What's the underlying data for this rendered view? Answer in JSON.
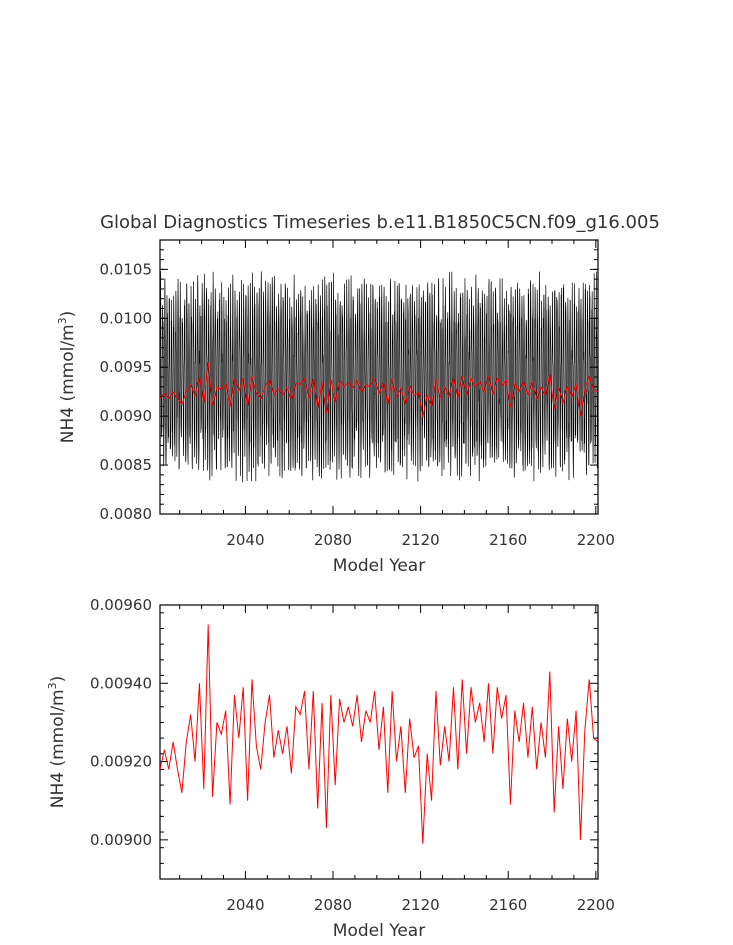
{
  "title": "Global Diagnostics Timeseries b.e11.B1850C5CN.f09_g16.005",
  "chart_data": [
    {
      "type": "line",
      "xlabel": "Model Year",
      "ylabel_base": "NH4 (mmol/m",
      "ylabel_sup": "3",
      "ylabel_close": ")",
      "xlim": [
        2001,
        2201
      ],
      "ylim": [
        0.008,
        0.0108
      ],
      "xticks": [
        2040,
        2080,
        2120,
        2160,
        2200
      ],
      "yticks": [
        "0.0080",
        "0.0085",
        "0.0090",
        "0.0095",
        "0.0100",
        "0.0105"
      ],
      "series": [
        {
          "color": "#000000",
          "description_of_signal": "monthly values, seasonal oscillation",
          "annual_min_approx": 0.0086,
          "annual_max_approx": 0.0102
        },
        {
          "color": "#ff0000",
          "x": [
            2001,
            2003,
            2005,
            2007,
            2009,
            2011,
            2013,
            2015,
            2017,
            2019,
            2021,
            2023,
            2025,
            2027,
            2029,
            2031,
            2033,
            2035,
            2037,
            2039,
            2041,
            2043,
            2045,
            2047,
            2049,
            2051,
            2053,
            2055,
            2057,
            2059,
            2061,
            2063,
            2065,
            2067,
            2069,
            2071,
            2073,
            2075,
            2077,
            2079,
            2081,
            2083,
            2085,
            2087,
            2089,
            2091,
            2093,
            2095,
            2097,
            2099,
            2101,
            2103,
            2105,
            2107,
            2109,
            2111,
            2113,
            2115,
            2117,
            2119,
            2121,
            2123,
            2125,
            2127,
            2129,
            2131,
            2133,
            2135,
            2137,
            2139,
            2141,
            2143,
            2145,
            2147,
            2149,
            2151,
            2153,
            2155,
            2157,
            2159,
            2161,
            2163,
            2165,
            2167,
            2169,
            2171,
            2173,
            2175,
            2177,
            2179,
            2181,
            2183,
            2185,
            2187,
            2189,
            2191,
            2193,
            2195,
            2197,
            2199,
            2201
          ],
          "values": [
            0.00918,
            0.00923,
            0.00918,
            0.00925,
            0.00918,
            0.00912,
            0.00925,
            0.00932,
            0.0092,
            0.0094,
            0.00913,
            0.00955,
            0.00911,
            0.0093,
            0.00927,
            0.00933,
            0.00909,
            0.00937,
            0.00926,
            0.00939,
            0.0091,
            0.00941,
            0.00924,
            0.00918,
            0.0093,
            0.00937,
            0.00921,
            0.00928,
            0.00922,
            0.00929,
            0.00917,
            0.00934,
            0.00932,
            0.00938,
            0.00918,
            0.00938,
            0.00908,
            0.00935,
            0.00903,
            0.00937,
            0.00914,
            0.00936,
            0.0093,
            0.00934,
            0.00929,
            0.00937,
            0.00925,
            0.00933,
            0.0093,
            0.00938,
            0.00923,
            0.00934,
            0.00912,
            0.00938,
            0.0092,
            0.00929,
            0.00912,
            0.00931,
            0.00921,
            0.00924,
            0.00899,
            0.00922,
            0.0091,
            0.00938,
            0.00919,
            0.00929,
            0.0092,
            0.00939,
            0.00918,
            0.00941,
            0.00922,
            0.00939,
            0.0093,
            0.00935,
            0.00925,
            0.0094,
            0.00922,
            0.00939,
            0.00931,
            0.00937,
            0.00909,
            0.00933,
            0.00925,
            0.00935,
            0.00921,
            0.00934,
            0.00918,
            0.0093,
            0.00921,
            0.00943,
            0.00907,
            0.00929,
            0.00913,
            0.00931,
            0.0092,
            0.00933,
            0.009,
            0.00928,
            0.00941,
            0.00926,
            0.00925
          ]
        }
      ]
    },
    {
      "type": "line",
      "xlabel": "Model Year",
      "ylabel_base": "NH4 (mmol/m",
      "ylabel_sup": "3",
      "ylabel_close": ")",
      "xlim": [
        2001,
        2201
      ],
      "ylim": [
        0.0089,
        0.0096
      ],
      "xticks": [
        2040,
        2080,
        2120,
        2160,
        2200
      ],
      "yticks": [
        "0.00900",
        "0.00920",
        "0.00940",
        "0.00960"
      ],
      "series": [
        {
          "color": "#ff0000",
          "x": [
            2001,
            2003,
            2005,
            2007,
            2009,
            2011,
            2013,
            2015,
            2017,
            2019,
            2021,
            2023,
            2025,
            2027,
            2029,
            2031,
            2033,
            2035,
            2037,
            2039,
            2041,
            2043,
            2045,
            2047,
            2049,
            2051,
            2053,
            2055,
            2057,
            2059,
            2061,
            2063,
            2065,
            2067,
            2069,
            2071,
            2073,
            2075,
            2077,
            2079,
            2081,
            2083,
            2085,
            2087,
            2089,
            2091,
            2093,
            2095,
            2097,
            2099,
            2101,
            2103,
            2105,
            2107,
            2109,
            2111,
            2113,
            2115,
            2117,
            2119,
            2121,
            2123,
            2125,
            2127,
            2129,
            2131,
            2133,
            2135,
            2137,
            2139,
            2141,
            2143,
            2145,
            2147,
            2149,
            2151,
            2153,
            2155,
            2157,
            2159,
            2161,
            2163,
            2165,
            2167,
            2169,
            2171,
            2173,
            2175,
            2177,
            2179,
            2181,
            2183,
            2185,
            2187,
            2189,
            2191,
            2193,
            2195,
            2197,
            2199,
            2201
          ],
          "values": [
            0.00918,
            0.00923,
            0.00918,
            0.00925,
            0.00918,
            0.00912,
            0.00925,
            0.00932,
            0.0092,
            0.0094,
            0.00913,
            0.00955,
            0.00911,
            0.0093,
            0.00927,
            0.00933,
            0.00909,
            0.00937,
            0.00926,
            0.00939,
            0.0091,
            0.00941,
            0.00924,
            0.00918,
            0.0093,
            0.00937,
            0.00921,
            0.00928,
            0.00922,
            0.00929,
            0.00917,
            0.00934,
            0.00932,
            0.00938,
            0.00918,
            0.00938,
            0.00908,
            0.00935,
            0.00903,
            0.00937,
            0.00914,
            0.00936,
            0.0093,
            0.00934,
            0.00929,
            0.00937,
            0.00925,
            0.00933,
            0.0093,
            0.00938,
            0.00923,
            0.00934,
            0.00912,
            0.00938,
            0.0092,
            0.00929,
            0.00912,
            0.00931,
            0.00921,
            0.00924,
            0.00899,
            0.00922,
            0.0091,
            0.00938,
            0.00919,
            0.00929,
            0.0092,
            0.00939,
            0.00918,
            0.00941,
            0.00922,
            0.00939,
            0.0093,
            0.00935,
            0.00925,
            0.0094,
            0.00922,
            0.00939,
            0.00931,
            0.00937,
            0.00909,
            0.00933,
            0.00925,
            0.00935,
            0.00921,
            0.00934,
            0.00918,
            0.0093,
            0.00921,
            0.00943,
            0.00907,
            0.00929,
            0.00913,
            0.00931,
            0.0092,
            0.00933,
            0.009,
            0.00928,
            0.00941,
            0.00926,
            0.00925
          ]
        }
      ]
    }
  ]
}
